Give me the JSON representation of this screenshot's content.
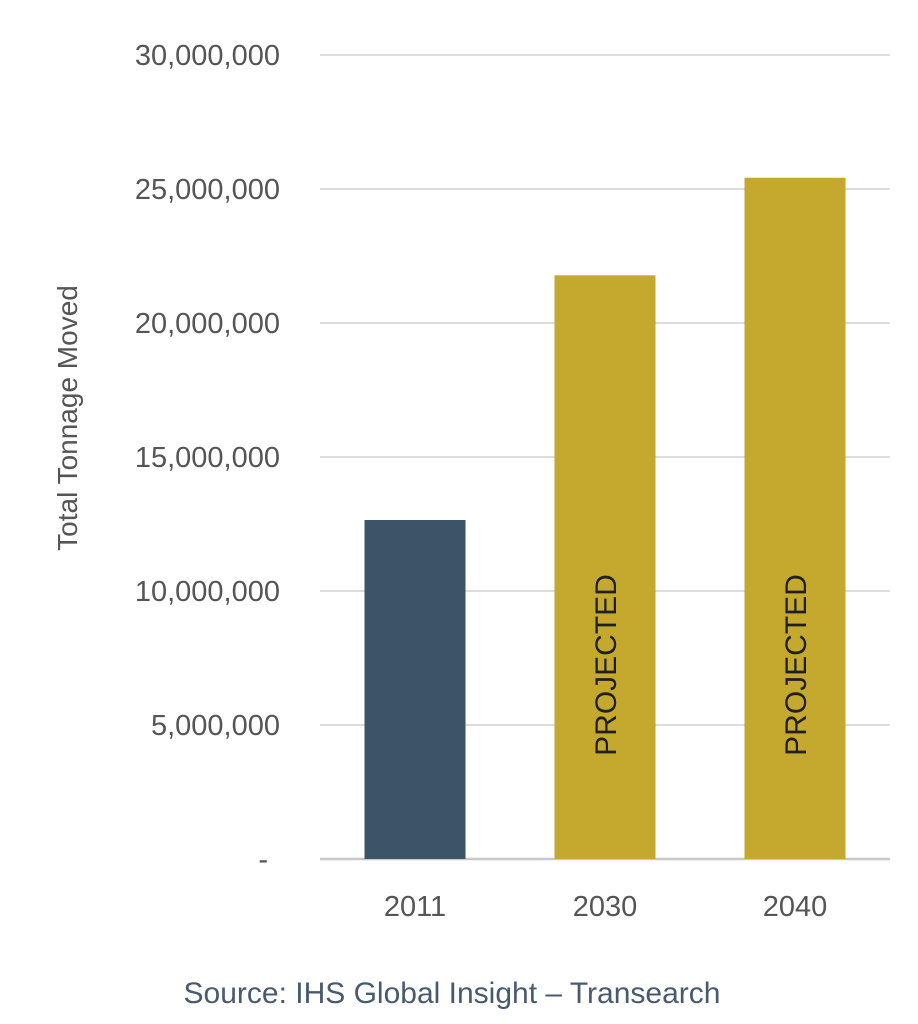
{
  "chart_data": {
    "type": "bar",
    "title": "",
    "xlabel": "",
    "ylabel": "Total Tonnage Moved",
    "categories": [
      "2011",
      "2030",
      "2040"
    ],
    "values": [
      12650000,
      21780000,
      25420000
    ],
    "bar_labels": [
      "",
      "PROJECTED",
      "PROJECTED"
    ],
    "bar_colors": [
      "#3d5368",
      "#c4a92e",
      "#c4a92e"
    ],
    "ylim": [
      0,
      30000000
    ],
    "yticks": [
      0,
      5000000,
      10000000,
      15000000,
      20000000,
      25000000,
      30000000
    ],
    "ytick_labels": [
      "-",
      "5,000,000",
      "10,000,000",
      "15,000,000",
      "20,000,000",
      "25,000,000",
      "30,000,000"
    ],
    "grid": true,
    "source": "Source: IHS Global Insight – Transearch"
  }
}
